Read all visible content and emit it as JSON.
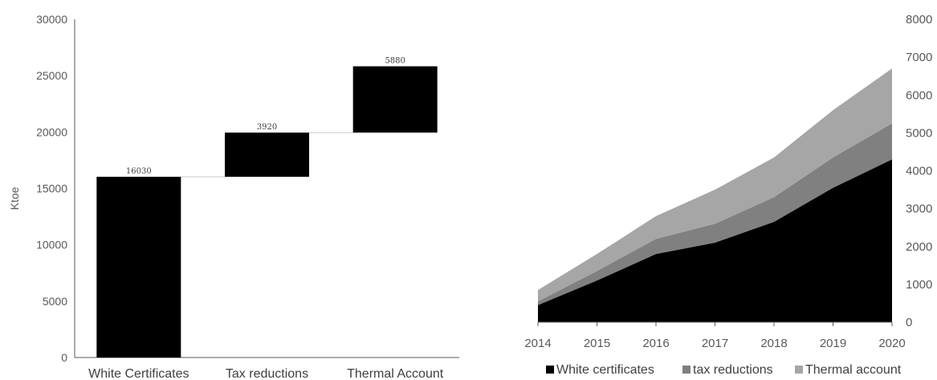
{
  "chart_data": [
    {
      "type": "bar",
      "subtype": "waterfall",
      "categories": [
        "White Certificates",
        "Tax reductions",
        "Thermal Account"
      ],
      "values": [
        16030,
        3920,
        5880
      ],
      "data_labels": [
        "16030",
        "3920",
        "5880"
      ],
      "ylabel": "Ktoe",
      "ylim": [
        0,
        30000
      ],
      "yticks": [
        "0",
        "5000",
        "10000",
        "15000",
        "20000",
        "25000",
        "30000"
      ],
      "bar_color": "#000000",
      "grid": false
    },
    {
      "type": "area",
      "stacked": true,
      "x": [
        "2014",
        "2015",
        "2016",
        "2017",
        "2018",
        "2019",
        "2020"
      ],
      "series": [
        {
          "name": "White certificates",
          "values": [
            450,
            1100,
            1800,
            2100,
            2650,
            3550,
            4300
          ],
          "color": "#000000"
        },
        {
          "name": "tax reductions",
          "values": [
            100,
            250,
            400,
            500,
            650,
            800,
            950
          ],
          "color": "#808080"
        },
        {
          "name": "Thermal account",
          "values": [
            300,
            450,
            600,
            900,
            1050,
            1250,
            1450
          ],
          "color": "#a6a6a6"
        }
      ],
      "ylim": [
        0,
        8000
      ],
      "yticks": [
        "0",
        "1000",
        "2000",
        "3000",
        "4000",
        "5000",
        "6000",
        "7000",
        "8000"
      ],
      "legend_position": "bottom",
      "grid": false
    }
  ]
}
